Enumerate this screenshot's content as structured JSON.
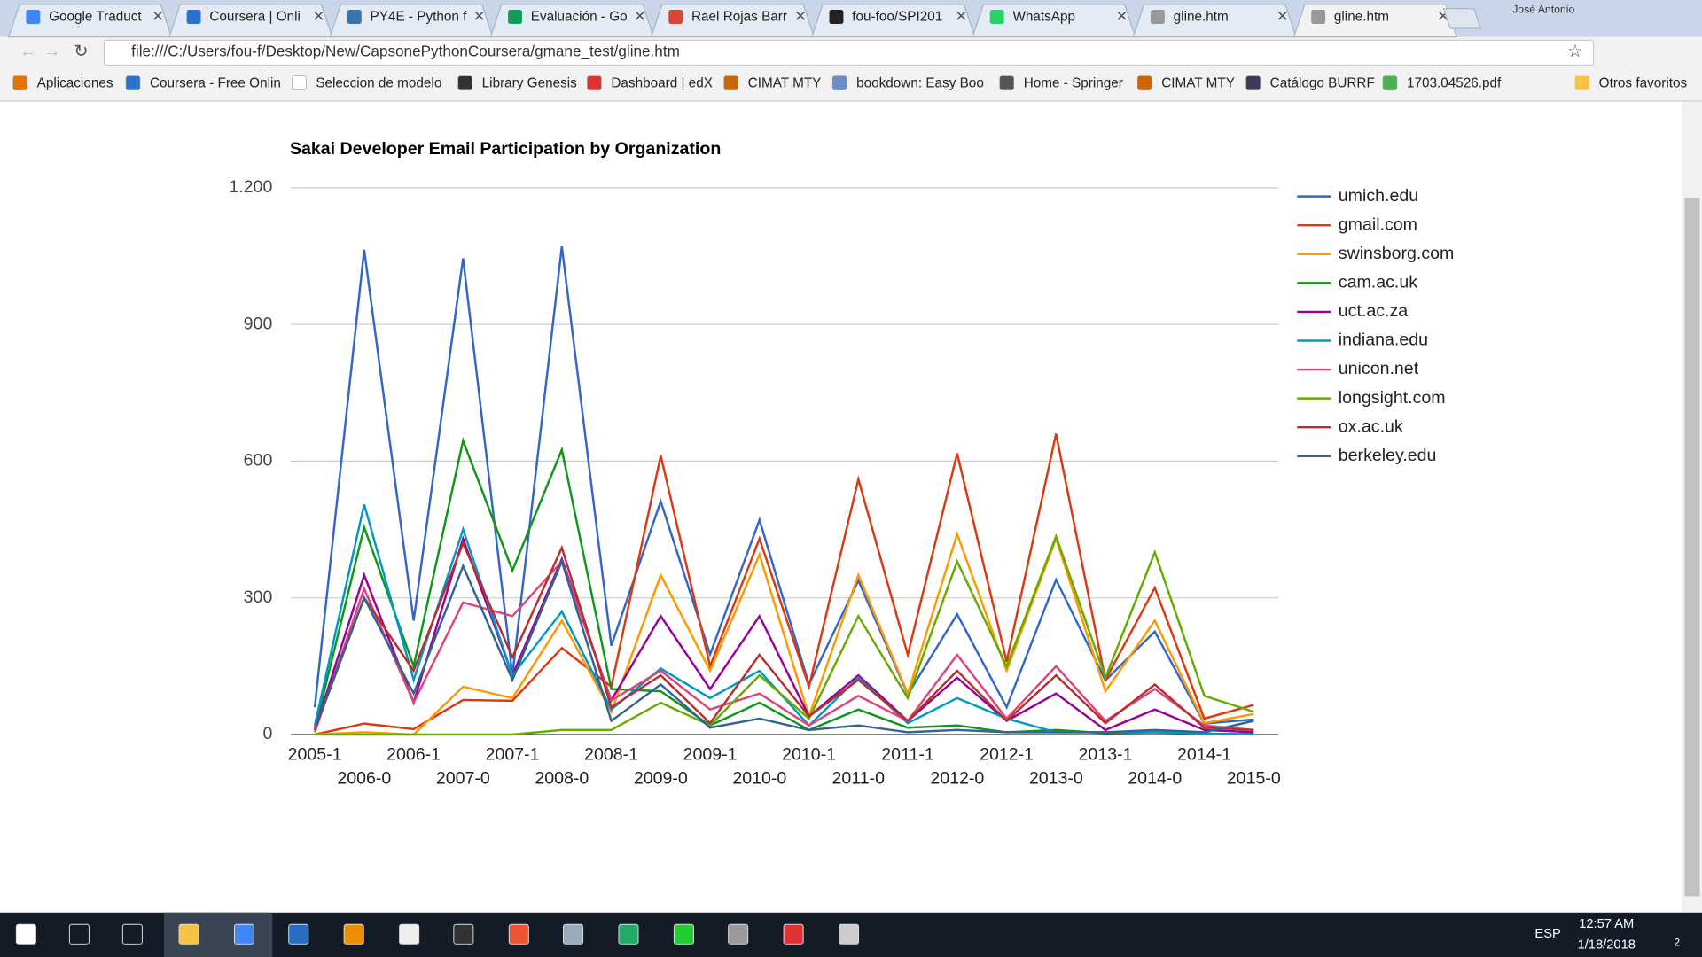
{
  "browser": {
    "tabs": [
      "Google Traduct",
      "Coursera | Onli",
      "PY4E - Python f",
      "Evaluación - Go",
      "Rael Rojas Barr",
      "fou-foo/SPI201",
      "WhatsApp",
      "gline.htm",
      "gline.htm"
    ],
    "user": "José Antonio",
    "url": "file:///C:/Users/fou-f/Desktop/New/CapsonePythonCoursera/gmane_test/gline.htm",
    "bookmarks": [
      "Aplicaciones",
      "Coursera - Free Onlin",
      "Seleccion de modelo",
      "Library Genesis",
      "Dashboard | edX",
      "CIMAT MTY",
      "bookdown: Easy Boo",
      "Home - Springer",
      "CIMAT MTY",
      "Catálogo BURRF",
      "1703.04526.pdf"
    ],
    "other_bookmarks": "Otros favoritos"
  },
  "taskbar": {
    "language": "ESP",
    "time": "12:57 AM",
    "date": "1/18/2018",
    "notifications": "2"
  },
  "chart_data": {
    "type": "line",
    "title": "Sakai Developer Email Participation by Organization",
    "categories": [
      "2005-1",
      "2006-0",
      "2006-1",
      "2007-0",
      "2007-1",
      "2008-0",
      "2008-1",
      "2009-0",
      "2009-1",
      "2010-0",
      "2010-1",
      "2011-0",
      "2011-1",
      "2012-0",
      "2012-1",
      "2013-0",
      "2013-1",
      "2014-0",
      "2014-1",
      "2015-0"
    ],
    "ylim": [
      0,
      1200
    ],
    "yticks": [
      0,
      300,
      600,
      900,
      {
        "value": 1200,
        "label": "1.200"
      }
    ],
    "grid": true,
    "legend": "right",
    "series": [
      {
        "name": "umich.edu",
        "color": "#3366cc",
        "values": [
          60,
          1064,
          250,
          1045,
          130,
          1071,
          195,
          512,
          176,
          471,
          110,
          338,
          88,
          264,
          60,
          340,
          119,
          226,
          24,
          33
        ]
      },
      {
        "name": "gmail.com",
        "color": "#dc3912",
        "values": [
          0,
          24,
          12,
          76,
          74,
          190,
          105,
          612,
          150,
          430,
          105,
          560,
          175,
          617,
          160,
          660,
          120,
          322,
          35,
          65
        ]
      },
      {
        "name": "swinsborg.com",
        "color": "#ff9900",
        "values": [
          0,
          5,
          0,
          105,
          80,
          250,
          50,
          350,
          140,
          395,
          40,
          350,
          90,
          440,
          140,
          430,
          95,
          250,
          25,
          45
        ]
      },
      {
        "name": "cam.ac.uk",
        "color": "#109618",
        "values": [
          10,
          455,
          150,
          645,
          360,
          625,
          100,
          95,
          20,
          70,
          10,
          55,
          15,
          20,
          5,
          10,
          3,
          5,
          2,
          1
        ]
      },
      {
        "name": "uct.ac.za",
        "color": "#990099",
        "values": [
          10,
          350,
          70,
          430,
          130,
          385,
          75,
          260,
          100,
          260,
          40,
          130,
          30,
          125,
          30,
          90,
          10,
          55,
          10,
          5
        ]
      },
      {
        "name": "indiana.edu",
        "color": "#0099c6",
        "values": [
          20,
          505,
          120,
          450,
          130,
          270,
          55,
          145,
          80,
          140,
          20,
          125,
          25,
          80,
          35,
          5,
          5,
          5,
          2,
          0
        ]
      },
      {
        "name": "unicon.net",
        "color": "#dd4477",
        "values": [
          5,
          320,
          70,
          290,
          260,
          380,
          75,
          140,
          55,
          90,
          20,
          85,
          30,
          175,
          35,
          150,
          30,
          100,
          20,
          10
        ]
      },
      {
        "name": "longsight.com",
        "color": "#66aa00",
        "values": [
          0,
          0,
          0,
          0,
          0,
          10,
          10,
          70,
          20,
          130,
          35,
          260,
          80,
          380,
          150,
          435,
          125,
          400,
          85,
          50
        ]
      },
      {
        "name": "ox.ac.uk",
        "color": "#b82e2e",
        "values": [
          10,
          300,
          140,
          420,
          170,
          410,
          60,
          130,
          25,
          175,
          40,
          120,
          30,
          140,
          30,
          130,
          25,
          110,
          15,
          10
        ]
      },
      {
        "name": "berkeley.edu",
        "color": "#316395",
        "values": [
          15,
          300,
          90,
          370,
          120,
          380,
          30,
          110,
          15,
          35,
          10,
          20,
          5,
          10,
          5,
          5,
          5,
          10,
          5,
          30
        ]
      }
    ]
  }
}
